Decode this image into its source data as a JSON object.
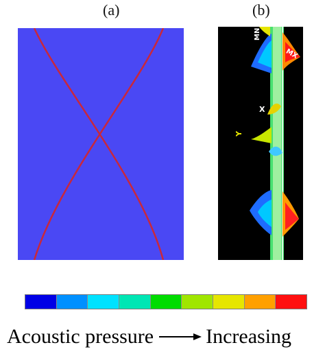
{
  "panels": {
    "a": {
      "label": "(a)",
      "background": "#4a48f4",
      "curve_color": "#c8283c"
    },
    "b": {
      "label": "(b)",
      "background": "#000000",
      "annotations": {
        "mn": "MN",
        "mx": "MX",
        "x_axis": "X",
        "y_axis": "Y"
      }
    }
  },
  "colorbar": {
    "colors": [
      "#0000e6",
      "#0090ff",
      "#00e2ff",
      "#00e6b4",
      "#00dc00",
      "#a0e600",
      "#e6e600",
      "#ffa000",
      "#ff1010"
    ]
  },
  "caption": {
    "left": "Acoustic pressure",
    "right": "Increasing"
  }
}
